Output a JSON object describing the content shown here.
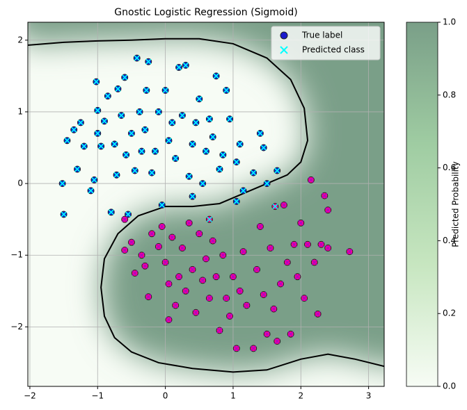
{
  "chart_data": {
    "type": "scatter",
    "title": "Gnostic Logistic Regression (Sigmoid)",
    "xlim": [
      -2.03,
      3.23
    ],
    "ylim": [
      -2.83,
      2.25
    ],
    "xticks": [
      {
        "value": -2,
        "label": "−2"
      },
      {
        "value": -1,
        "label": "−1"
      },
      0,
      1,
      2,
      3
    ],
    "yticks": [
      {
        "value": -2,
        "label": "−2"
      },
      {
        "value": -1,
        "label": "−1"
      },
      0,
      1,
      2
    ],
    "grid": true,
    "legend_position": "upper right",
    "legend": [
      {
        "name": "True label",
        "marker": "circle",
        "color": "#1a1acc"
      },
      {
        "name": "Predicted class",
        "marker": "x",
        "color": "#00ffff"
      }
    ],
    "true_label_colors": [
      "#0a2bd6",
      "#ff0090"
    ],
    "predicted_class_colors": [
      "#00ffff",
      "#b000c8"
    ],
    "colormap": [
      "#f7fcf5",
      "#c7e6c0",
      "#9fcca2",
      "#7a9f88"
    ],
    "colorbar": {
      "label": "Predicted Probability",
      "clim": [
        0,
        1
      ],
      "ticks": [
        {
          "value": 0,
          "label": "0.0"
        },
        {
          "value": 0.2,
          "label": "0.2"
        },
        {
          "value": 0.4,
          "label": "0.4"
        },
        {
          "value": 0.6,
          "label": "0.6"
        },
        {
          "value": 0.8,
          "label": "0.8"
        },
        {
          "value": 1,
          "label": "1.0"
        }
      ]
    },
    "decision_boundary": {
      "x": [
        -2.03,
        -1.5,
        -1.0,
        -0.5,
        0.0,
        0.5,
        1.0,
        1.5,
        1.85,
        2.05,
        2.1,
        2.0,
        1.8,
        1.5,
        1.2,
        0.8,
        0.4,
        0.0,
        -0.4,
        -0.7,
        -0.9,
        -0.95,
        -0.9,
        -0.75,
        -0.5,
        -0.1,
        0.4,
        1.0,
        1.5,
        2.0,
        2.4,
        2.8,
        3.23
      ],
      "y": [
        1.93,
        1.97,
        1.99,
        2.0,
        2.02,
        2.02,
        1.95,
        1.75,
        1.45,
        1.05,
        0.6,
        0.3,
        0.12,
        0.0,
        -0.12,
        -0.28,
        -0.32,
        -0.32,
        -0.45,
        -0.7,
        -1.05,
        -1.45,
        -1.85,
        -2.15,
        -2.35,
        -2.5,
        -2.58,
        -2.63,
        -2.6,
        -2.45,
        -2.38,
        -2.45,
        -2.55
      ]
    },
    "points": {
      "x": [
        -1.52,
        -1.5,
        -1.45,
        -1.35,
        -1.3,
        -1.25,
        -1.2,
        -1.1,
        -1.05,
        -1.0,
        -1.0,
        -1.02,
        -0.95,
        -0.9,
        -0.85,
        -0.8,
        -0.75,
        -0.72,
        -0.7,
        -0.65,
        -0.6,
        -0.58,
        -0.55,
        -0.5,
        -0.45,
        -0.42,
        -0.38,
        -0.35,
        -0.3,
        -0.28,
        -0.25,
        -0.2,
        -0.15,
        -0.1,
        -0.05,
        0.0,
        0.05,
        0.1,
        0.15,
        0.2,
        0.25,
        0.3,
        0.35,
        0.4,
        0.4,
        0.45,
        0.5,
        0.55,
        0.6,
        0.65,
        0.7,
        0.75,
        0.8,
        0.85,
        0.9,
        0.95,
        1.05,
        1.05,
        1.1,
        1.15,
        1.3,
        1.4,
        1.45,
        1.5,
        1.65,
        -0.6,
        -0.6,
        -0.5,
        -0.45,
        -0.35,
        -0.3,
        -0.25,
        -0.2,
        -0.1,
        -0.05,
        0.0,
        0.05,
        0.05,
        0.1,
        0.15,
        0.2,
        0.25,
        0.3,
        0.35,
        0.4,
        0.45,
        0.5,
        0.55,
        0.6,
        0.65,
        0.7,
        0.75,
        0.8,
        0.85,
        0.9,
        0.95,
        1.0,
        1.05,
        1.1,
        1.15,
        1.2,
        1.3,
        1.35,
        1.4,
        1.45,
        1.5,
        1.55,
        1.6,
        1.65,
        1.7,
        1.75,
        1.8,
        1.85,
        1.9,
        1.95,
        2.0,
        2.05,
        2.1,
        2.15,
        2.2,
        2.25,
        2.3,
        2.35,
        2.4,
        2.4,
        2.72,
        1.62,
        0.65
      ],
      "y": [
        0.0,
        -0.43,
        0.6,
        0.75,
        0.2,
        0.85,
        0.52,
        -0.1,
        0.05,
        0.7,
        1.02,
        1.42,
        0.52,
        0.87,
        1.22,
        -0.4,
        0.55,
        0.12,
        1.32,
        0.95,
        1.48,
        0.4,
        -0.43,
        0.7,
        0.18,
        1.75,
        1.0,
        0.45,
        0.75,
        1.3,
        1.7,
        0.15,
        0.45,
        1.0,
        -0.3,
        1.3,
        0.6,
        0.85,
        0.35,
        1.62,
        0.95,
        1.65,
        0.1,
        0.55,
        -0.18,
        0.85,
        1.18,
        0.0,
        0.45,
        0.9,
        0.65,
        1.5,
        0.2,
        0.4,
        1.3,
        0.9,
        0.3,
        -0.25,
        0.55,
        -0.1,
        0.15,
        0.7,
        0.5,
        0.0,
        0.18,
        -0.5,
        -0.93,
        -0.82,
        -1.25,
        -1.0,
        -1.15,
        -1.58,
        -0.7,
        -0.88,
        -0.6,
        -1.1,
        -1.4,
        -1.9,
        -0.75,
        -1.7,
        -1.3,
        -0.9,
        -1.5,
        -0.55,
        -1.2,
        -1.8,
        -0.7,
        -1.35,
        -1.05,
        -1.6,
        -0.8,
        -1.3,
        -2.05,
        -1.0,
        -1.6,
        -1.85,
        -1.3,
        -2.3,
        -1.5,
        -0.95,
        -1.7,
        -2.3,
        -1.2,
        -0.6,
        -1.55,
        -2.1,
        -0.9,
        -1.75,
        -2.2,
        -1.4,
        -0.3,
        -1.1,
        -2.1,
        -0.85,
        -1.3,
        -0.55,
        -1.6,
        -0.85,
        0.05,
        -1.1,
        -1.82,
        -0.85,
        -0.17,
        -0.37,
        -0.9,
        -0.95,
        -0.32,
        -0.5
      ],
      "true_label": [
        0,
        0,
        0,
        0,
        0,
        0,
        0,
        0,
        0,
        0,
        0,
        0,
        0,
        0,
        0,
        0,
        0,
        0,
        0,
        0,
        0,
        0,
        0,
        0,
        0,
        0,
        0,
        0,
        0,
        0,
        0,
        0,
        0,
        0,
        0,
        0,
        0,
        0,
        0,
        0,
        0,
        0,
        0,
        0,
        0,
        0,
        0,
        0,
        0,
        0,
        0,
        0,
        0,
        0,
        0,
        0,
        0,
        0,
        0,
        0,
        0,
        0,
        0,
        0,
        0,
        1,
        1,
        1,
        1,
        1,
        1,
        1,
        1,
        1,
        1,
        1,
        1,
        1,
        1,
        1,
        1,
        1,
        1,
        1,
        1,
        1,
        1,
        1,
        1,
        1,
        1,
        1,
        1,
        1,
        1,
        1,
        1,
        1,
        1,
        1,
        1,
        1,
        1,
        1,
        1,
        1,
        1,
        1,
        1,
        1,
        1,
        1,
        1,
        1,
        1,
        1,
        1,
        1,
        1,
        1,
        1,
        1,
        1,
        1,
        1,
        1,
        1,
        1
      ],
      "predicted_class": [
        0,
        0,
        0,
        0,
        0,
        0,
        0,
        0,
        0,
        0,
        0,
        0,
        0,
        0,
        0,
        0,
        0,
        0,
        0,
        0,
        0,
        0,
        0,
        0,
        0,
        0,
        0,
        0,
        0,
        0,
        0,
        0,
        0,
        0,
        0,
        0,
        0,
        0,
        0,
        0,
        0,
        0,
        0,
        0,
        0,
        0,
        0,
        0,
        0,
        0,
        0,
        0,
        0,
        0,
        0,
        0,
        0,
        0,
        0,
        0,
        0,
        0,
        0,
        0,
        0,
        1,
        1,
        1,
        1,
        1,
        1,
        1,
        1,
        1,
        1,
        1,
        1,
        1,
        1,
        1,
        1,
        1,
        1,
        1,
        1,
        1,
        1,
        1,
        1,
        1,
        1,
        1,
        1,
        1,
        1,
        1,
        1,
        1,
        1,
        1,
        1,
        1,
        1,
        1,
        1,
        1,
        1,
        1,
        1,
        1,
        1,
        1,
        1,
        1,
        1,
        1,
        1,
        1,
        1,
        1,
        1,
        1,
        1,
        1,
        1,
        1,
        0,
        0
      ]
    }
  }
}
